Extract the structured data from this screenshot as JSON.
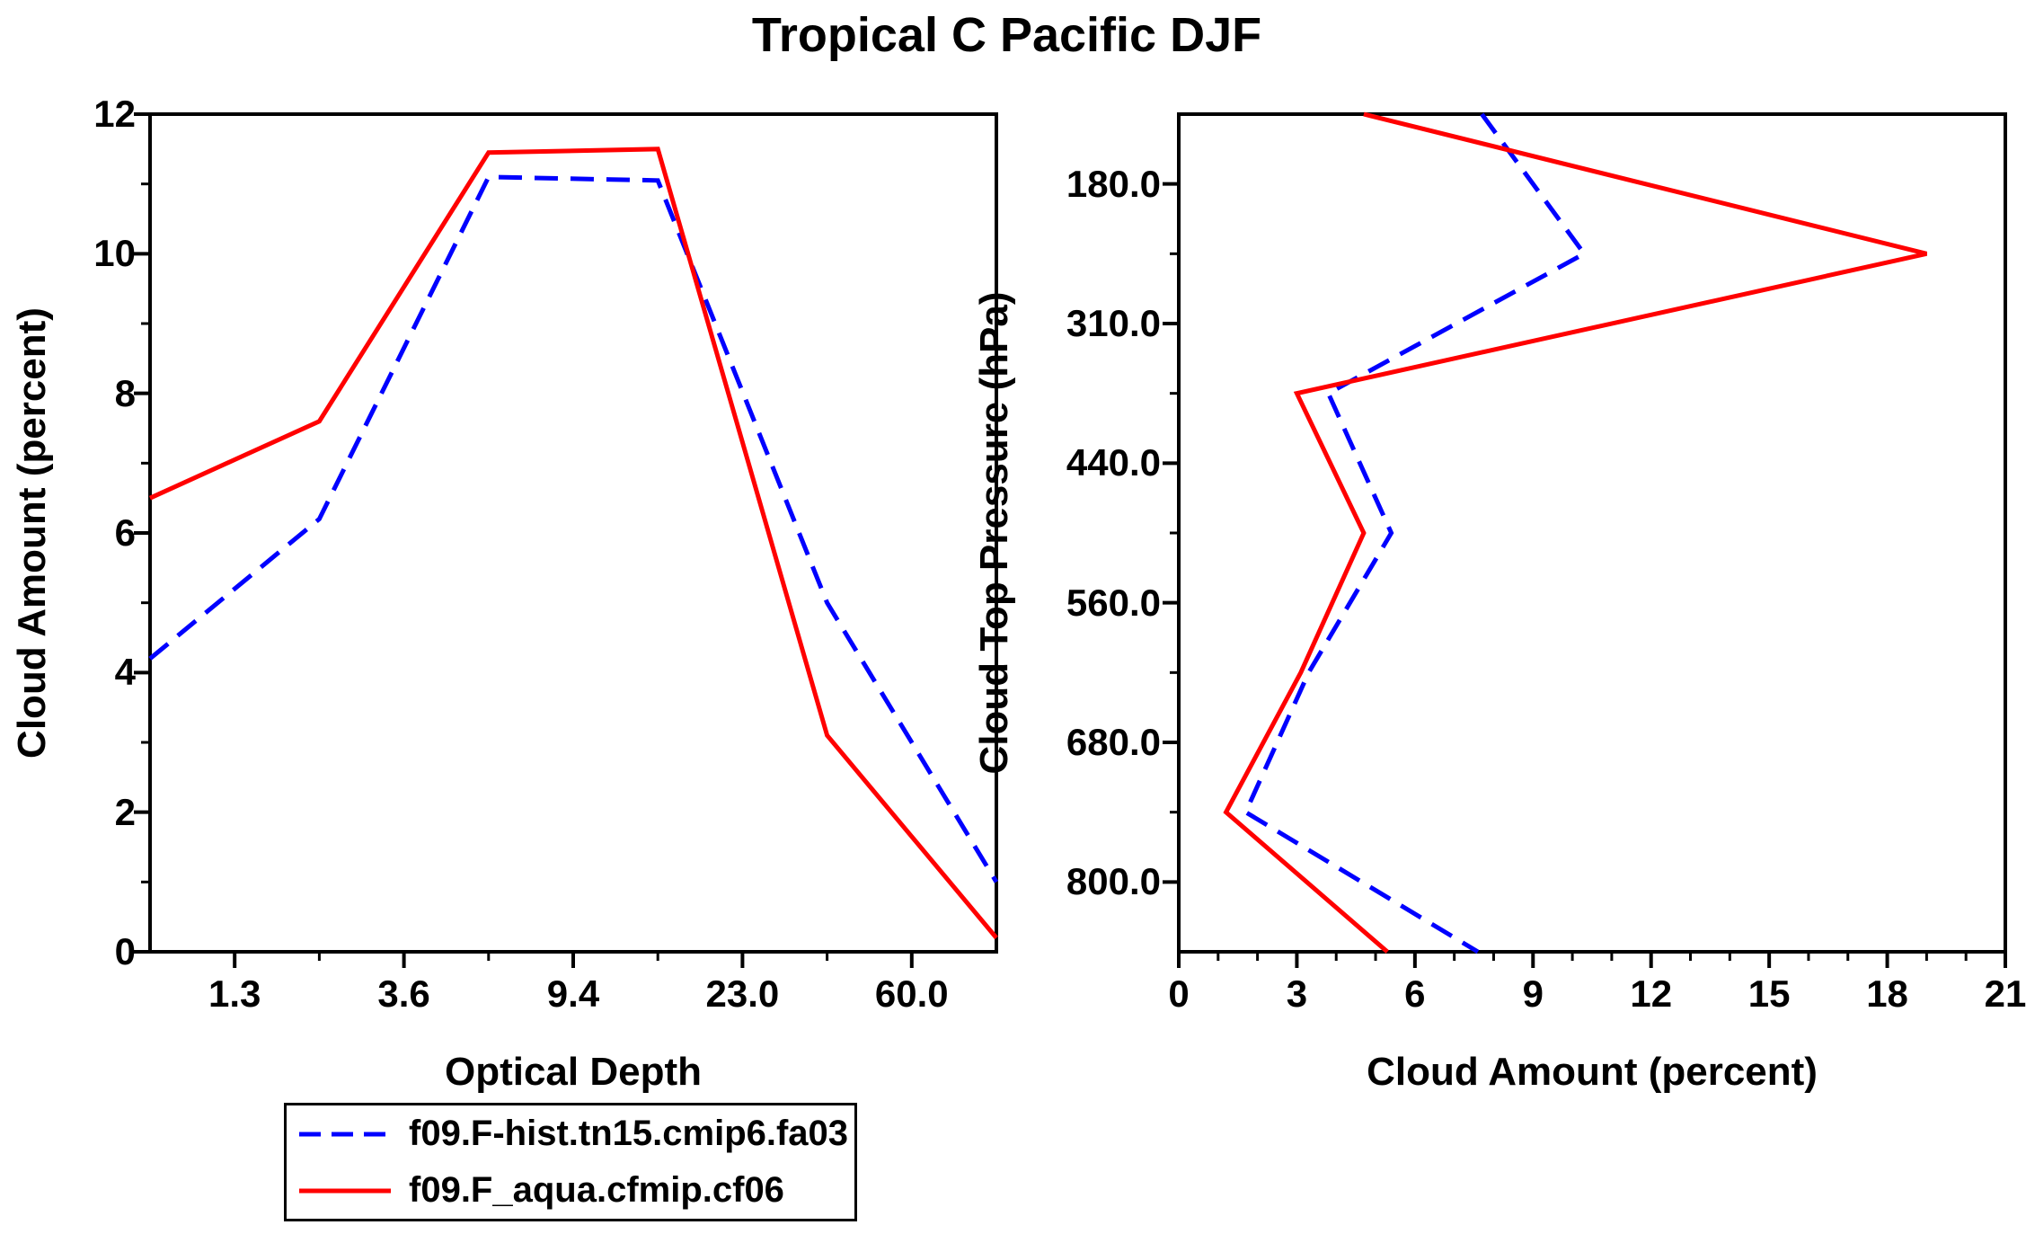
{
  "title": "Tropical C Pacific DJF",
  "colors": {
    "background": "#ffffff",
    "axis": "#000000",
    "series_hist": "#0000ff",
    "series_aqua": "#ff0000"
  },
  "legend": {
    "items": [
      {
        "label": "f09.F-hist.tn15.cmip6.fa03",
        "color": "#0000ff",
        "style": "dashed"
      },
      {
        "label": "f09.F_aqua.cfmip.cf06",
        "color": "#ff0000",
        "style": "solid"
      }
    ]
  },
  "chart_data": [
    {
      "type": "line",
      "panel": "left",
      "xlabel": "Optical Depth",
      "ylabel": "Cloud Amount (percent)",
      "x_axis": {
        "type": "category",
        "note": "6 optical-depth bins; points evenly spaced edge-to-edge, tick labels at bin boundaries",
        "tick_labels": [
          "1.3",
          "3.6",
          "9.4",
          "23.0",
          "60.0"
        ]
      },
      "y_axis": {
        "min": 0,
        "max": 12,
        "major_ticks": [
          0,
          2,
          4,
          6,
          8,
          10,
          12
        ],
        "tick_labels": [
          "0",
          "2",
          "4",
          "6",
          "8",
          "10",
          "12"
        ],
        "minor_ticks": [
          1,
          3,
          5,
          7,
          9,
          11
        ]
      },
      "series": [
        {
          "name": "f09.F-hist.tn15.cmip6.fa03",
          "color": "#0000ff",
          "style": "dashed",
          "values": [
            4.2,
            6.2,
            11.1,
            11.05,
            5.0,
            1.0
          ]
        },
        {
          "name": "f09.F_aqua.cfmip.cf06",
          "color": "#ff0000",
          "style": "solid",
          "values": [
            6.5,
            7.6,
            11.45,
            11.5,
            3.1,
            0.2
          ]
        }
      ]
    },
    {
      "type": "line",
      "panel": "right",
      "xlabel": "Cloud Amount (percent)",
      "ylabel": "Cloud Top Pressure (hPa)",
      "x_axis": {
        "min": 0,
        "max": 21,
        "major_ticks": [
          0,
          3,
          6,
          9,
          12,
          15,
          18,
          21
        ],
        "tick_labels": [
          "0",
          "3",
          "6",
          "9",
          "12",
          "15",
          "18",
          "21"
        ],
        "minor_step": 1
      },
      "y_axis": {
        "type": "category",
        "note": "7 cloud-top-pressure bins top-to-bottom; points evenly spaced edge-to-edge, tick labels at bin boundaries",
        "tick_labels": [
          "180.0",
          "310.0",
          "440.0",
          "560.0",
          "680.0",
          "800.0"
        ]
      },
      "series": [
        {
          "name": "f09.F-hist.tn15.cmip6.fa03",
          "color": "#0000ff",
          "style": "dashed",
          "values": [
            7.7,
            10.3,
            3.8,
            5.4,
            3.3,
            1.7,
            7.6
          ]
        },
        {
          "name": "f09.F_aqua.cfmip.cf06",
          "color": "#ff0000",
          "style": "solid",
          "values": [
            4.7,
            19.0,
            3.0,
            4.7,
            3.1,
            1.2,
            5.3
          ]
        }
      ]
    }
  ]
}
